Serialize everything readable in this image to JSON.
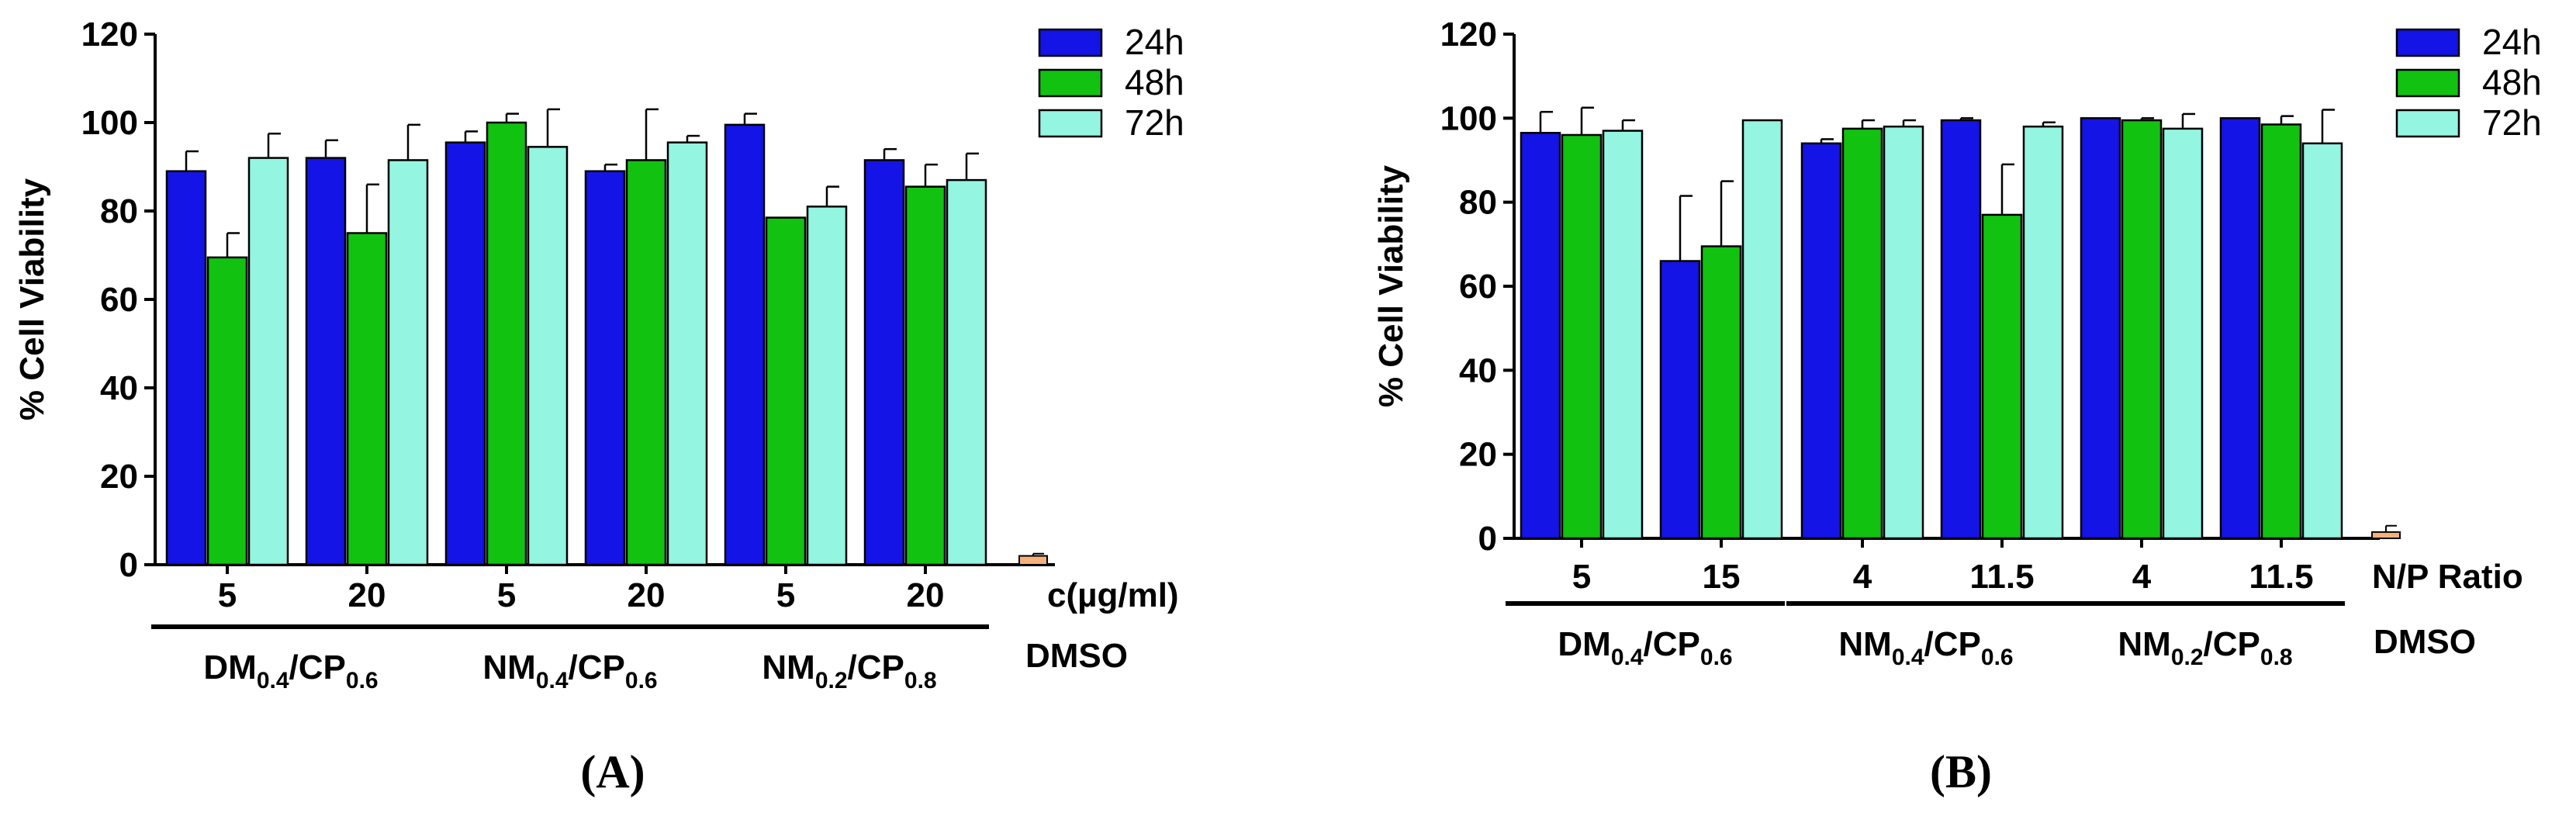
{
  "chart_data": [
    {
      "type": "bar",
      "panel_label": "(A)",
      "ylabel": "% Cell Viability",
      "ylim": [
        0,
        120
      ],
      "yticks": [
        0,
        20,
        40,
        60,
        80,
        100,
        120
      ],
      "x_unit_label": "c(µg/ml)",
      "categories": [
        "5",
        "20",
        "5",
        "20",
        "5",
        "20"
      ],
      "groups": [
        {
          "main": "DM",
          "sub1": "0.4",
          "mid": "/CP",
          "sub2": "0.6"
        },
        {
          "main": "NM",
          "sub1": "0.4",
          "mid": "/CP",
          "sub2": "0.6"
        },
        {
          "main": "NM",
          "sub1": "0.2",
          "mid": "/CP",
          "sub2": "0.8"
        }
      ],
      "series": [
        {
          "name": "24h",
          "color": "#1414e6",
          "values": [
            89,
            92,
            95.5,
            89,
            99.5,
            91.5
          ],
          "errors": [
            4.5,
            4,
            2.5,
            1.5,
            2.5,
            2.5
          ]
        },
        {
          "name": "48h",
          "color": "#11c211",
          "values": [
            69.5,
            75,
            100,
            91.5,
            78.5,
            85.5
          ],
          "errors": [
            5.5,
            11,
            2,
            11.5,
            0,
            5
          ]
        },
        {
          "name": "72h",
          "color": "#94f5e0",
          "values": [
            92,
            91.5,
            94.5,
            95.5,
            81,
            87
          ],
          "errors": [
            5.5,
            8,
            8.5,
            1.5,
            4.5,
            6
          ]
        }
      ],
      "control": {
        "label": "DMSO",
        "value": 2,
        "error": 0.5,
        "color": "#f5b07c"
      }
    },
    {
      "type": "bar",
      "panel_label": "(B)",
      "ylabel": "% Cell Viability",
      "ylim": [
        0,
        120
      ],
      "yticks": [
        0,
        20,
        40,
        60,
        80,
        100,
        120
      ],
      "x_unit_label": "N/P Ratio",
      "categories": [
        "5",
        "15",
        "4",
        "11.5",
        "4",
        "11.5"
      ],
      "groups": [
        {
          "main": "DM",
          "sub1": "0.4",
          "mid": "/CP",
          "sub2": "0.6"
        },
        {
          "main": "NM",
          "sub1": "0.4",
          "mid": "/CP",
          "sub2": "0.6"
        },
        {
          "main": "NM",
          "sub1": "0.2",
          "mid": "/CP",
          "sub2": "0.8"
        }
      ],
      "series": [
        {
          "name": "24h",
          "color": "#1414e6",
          "values": [
            96.5,
            66,
            94,
            99.5,
            100,
            100
          ],
          "errors": [
            5,
            15.5,
            1,
            0.5,
            0,
            0
          ]
        },
        {
          "name": "48h",
          "color": "#11c211",
          "values": [
            96,
            69.5,
            97.5,
            77,
            99.5,
            98.5
          ],
          "errors": [
            6.5,
            15.5,
            2,
            12,
            0.5,
            2
          ]
        },
        {
          "name": "72h",
          "color": "#94f5e0",
          "values": [
            97,
            99.5,
            98,
            98,
            97.5,
            94
          ],
          "errors": [
            2.5,
            0,
            1.5,
            1,
            3.5,
            8
          ]
        }
      ],
      "control": {
        "label": "DMSO",
        "value": 1.5,
        "error": 1.5,
        "color": "#f5b07c"
      }
    }
  ]
}
